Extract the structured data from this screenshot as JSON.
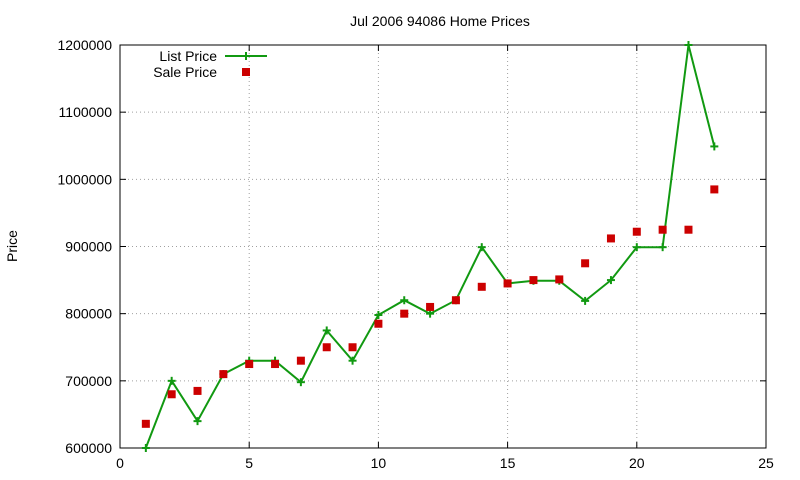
{
  "chart_data": {
    "type": "line",
    "title": "Jul 2006 94086 Home Prices",
    "xlabel": "",
    "ylabel": "Price",
    "xlim": [
      0,
      25
    ],
    "ylim": [
      600000,
      1200000
    ],
    "x_ticks": [
      0,
      5,
      10,
      15,
      20,
      25
    ],
    "y_ticks": [
      600000,
      700000,
      800000,
      900000,
      1000000,
      1100000,
      1200000
    ],
    "grid": true,
    "legend_position": "top-left",
    "series": [
      {
        "name": "List Price",
        "style": "line-with-plus-markers",
        "color": "#119911",
        "x": [
          1,
          2,
          3,
          4,
          5,
          6,
          7,
          8,
          9,
          10,
          11,
          12,
          13,
          14,
          15,
          16,
          17,
          18,
          19,
          20,
          21,
          22,
          23
        ],
        "y": [
          600000,
          700000,
          640000,
          710000,
          730000,
          730000,
          698000,
          775000,
          730000,
          798000,
          820000,
          800000,
          820000,
          899000,
          845000,
          849000,
          849000,
          819000,
          850000,
          899000,
          899000,
          1200000,
          1049000
        ]
      },
      {
        "name": "Sale Price",
        "style": "square-markers",
        "color": "#cc0000",
        "x": [
          1,
          2,
          3,
          4,
          5,
          6,
          7,
          8,
          9,
          10,
          11,
          12,
          13,
          14,
          15,
          16,
          17,
          18,
          19,
          20,
          21,
          22,
          23
        ],
        "y": [
          636000,
          680000,
          685000,
          710000,
          725000,
          725000,
          730000,
          750000,
          750000,
          785000,
          800000,
          810000,
          820000,
          840000,
          845000,
          850000,
          851000,
          875000,
          912000,
          922000,
          925000,
          925000,
          985000
        ]
      }
    ]
  }
}
